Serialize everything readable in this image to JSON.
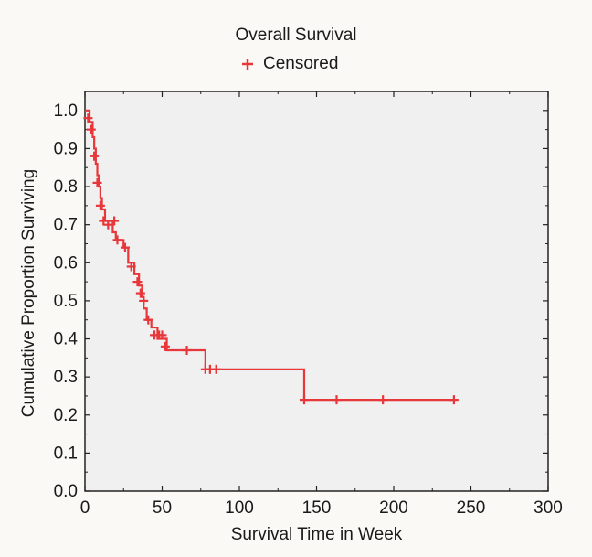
{
  "chart_data": {
    "type": "line",
    "title": "Overall Survival",
    "xlabel": "Survival Time in Week",
    "ylabel": "Cumulative Proportion Surviving",
    "xlim": [
      0,
      300
    ],
    "ylim": [
      0.0,
      1.05
    ],
    "x_ticks": [
      "0",
      "50",
      "100",
      "150",
      "200",
      "250",
      "300"
    ],
    "y_ticks": [
      "0.0",
      "0.1",
      "0.2",
      "0.3",
      "0.4",
      "0.5",
      "0.6",
      "0.7",
      "0.8",
      "0.9",
      "1.0"
    ],
    "grid": false,
    "legend": "top-center",
    "colors": {
      "series": "#e8373b",
      "plot_bg": "#f0f0f0",
      "axis": "#222222"
    },
    "series": [
      {
        "name": "Censored",
        "step": [
          [
            0,
            1.0
          ],
          [
            3,
            0.97
          ],
          [
            5,
            0.93
          ],
          [
            6,
            0.9
          ],
          [
            7,
            0.86
          ],
          [
            8,
            0.83
          ],
          [
            9,
            0.8
          ],
          [
            10,
            0.77
          ],
          [
            11,
            0.74
          ],
          [
            13,
            0.71
          ],
          [
            18,
            0.68
          ],
          [
            20,
            0.66
          ],
          [
            25,
            0.64
          ],
          [
            28,
            0.6
          ],
          [
            32,
            0.57
          ],
          [
            35,
            0.54
          ],
          [
            37,
            0.51
          ],
          [
            38,
            0.48
          ],
          [
            40,
            0.45
          ],
          [
            43,
            0.43
          ],
          [
            47,
            0.4
          ],
          [
            53,
            0.37
          ],
          [
            78,
            0.32
          ],
          [
            142,
            0.24
          ],
          [
            240,
            0.24
          ]
        ],
        "censored": [
          [
            2,
            0.98
          ],
          [
            4,
            0.95
          ],
          [
            6,
            0.88
          ],
          [
            8,
            0.81
          ],
          [
            10,
            0.75
          ],
          [
            12,
            0.71
          ],
          [
            15,
            0.7
          ],
          [
            19,
            0.71
          ],
          [
            21,
            0.66
          ],
          [
            26,
            0.64
          ],
          [
            30,
            0.59
          ],
          [
            34,
            0.55
          ],
          [
            36,
            0.52
          ],
          [
            38,
            0.5
          ],
          [
            41,
            0.45
          ],
          [
            45,
            0.41
          ],
          [
            48,
            0.41
          ],
          [
            50,
            0.41
          ],
          [
            52,
            0.38
          ],
          [
            66,
            0.37
          ],
          [
            78,
            0.32
          ],
          [
            81,
            0.32
          ],
          [
            85,
            0.32
          ],
          [
            142,
            0.24
          ],
          [
            163,
            0.24
          ],
          [
            193,
            0.24
          ],
          [
            239,
            0.24
          ]
        ]
      }
    ]
  }
}
